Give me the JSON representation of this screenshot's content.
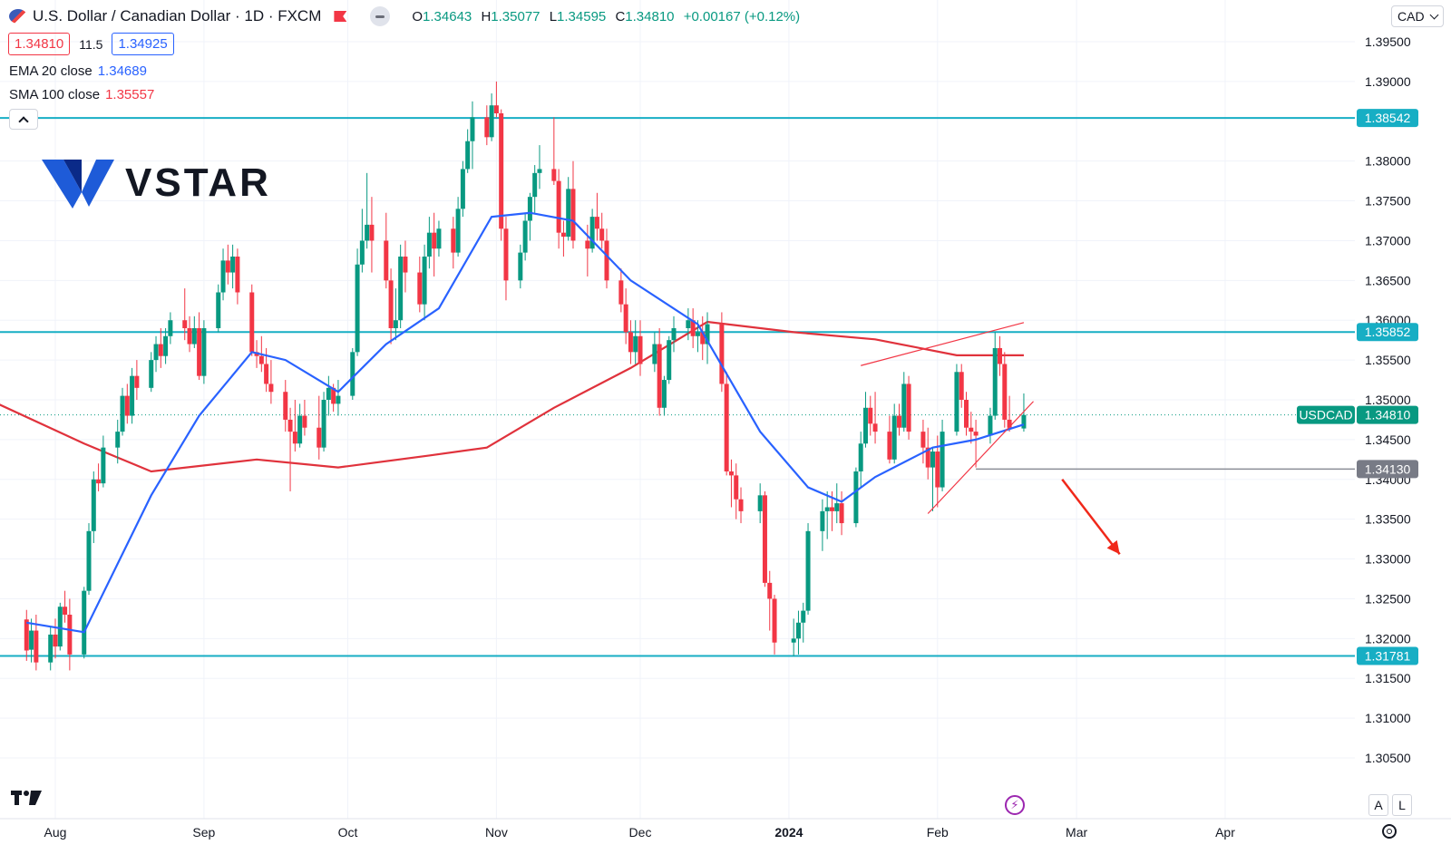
{
  "header": {
    "title": "U.S. Dollar / Canadian Dollar · 1D · FXCM",
    "o_label": "O",
    "o_value": "1.34643",
    "h_label": "H",
    "h_value": "1.35077",
    "l_label": "L",
    "l_value": "1.34595",
    "c_label": "C",
    "c_value": "1.34810",
    "change": "+0.00167 (+0.12%)"
  },
  "quote": {
    "bid": "1.34810",
    "spread": "11.5",
    "ask": "1.34925"
  },
  "indicators": {
    "ema_label": "EMA 20 close",
    "ema_value": "1.34689",
    "sma_label": "SMA 100 close",
    "sma_value": "1.35557"
  },
  "currency_select": {
    "value": "CAD"
  },
  "brand": {
    "name": "VSTAR"
  },
  "scale_buttons": {
    "auto": "A",
    "log": "L"
  },
  "colors": {
    "up": "#089981",
    "down": "#f23645",
    "ema": "#2962ff",
    "sma": "#e0323c",
    "hline": "#17aec4",
    "trend": "#f23645",
    "arrow": "#f0281a",
    "support_box": "#787b86"
  },
  "chart_data": {
    "type": "candlestick",
    "symbol_badge": "USDCAD",
    "last_price": 1.3481,
    "ylim": [
      1.301,
      1.399
    ],
    "y_ticks": [
      1.395,
      1.39,
      1.38,
      1.375,
      1.37,
      1.365,
      1.36,
      1.355,
      1.35,
      1.345,
      1.34,
      1.335,
      1.33,
      1.325,
      1.32,
      1.315,
      1.31,
      1.305
    ],
    "y_tick_labels": [
      "1.39500",
      "1.39000",
      "1.38000",
      "1.37500",
      "1.37000",
      "1.36500",
      "1.36000",
      "1.35500",
      "1.35000",
      "1.34500",
      "1.34000",
      "1.33500",
      "1.33000",
      "1.32500",
      "1.32000",
      "1.31500",
      "1.31000",
      "1.30500"
    ],
    "x_ticks": [
      {
        "label": "Aug",
        "date": "2023-08-01"
      },
      {
        "label": "Sep",
        "date": "2023-09-01"
      },
      {
        "label": "Oct",
        "date": "2023-10-01"
      },
      {
        "label": "Nov",
        "date": "2023-11-01"
      },
      {
        "label": "Dec",
        "date": "2023-12-01"
      },
      {
        "label": "2024",
        "date": "2024-01-01"
      },
      {
        "label": "Feb",
        "date": "2024-02-01"
      },
      {
        "label": "Mar",
        "date": "2024-03-01"
      },
      {
        "label": "Apr",
        "date": "2024-04-01"
      }
    ],
    "horizontal_levels": [
      {
        "value": 1.38542,
        "label": "1.38542"
      },
      {
        "value": 1.35852,
        "label": "1.35852"
      },
      {
        "value": 1.31781,
        "label": "1.31781"
      }
    ],
    "support_level": {
      "value": 1.3413,
      "label": "1.34130",
      "from": "2024-02-09"
    },
    "trendlines": [
      {
        "from": [
          "2024-01-16",
          1.3543
        ],
        "to": [
          "2024-02-19",
          1.3597
        ]
      },
      {
        "from": [
          "2024-01-30",
          1.3357
        ],
        "to": [
          "2024-02-21",
          1.3498
        ]
      }
    ],
    "arrow": {
      "from": [
        "2024-02-27",
        1.34
      ],
      "to": [
        "2024-03-10",
        1.3306
      ]
    },
    "candles": [
      [
        "2023-07-26",
        1.3224,
        1.3236,
        1.3172,
        1.3185
      ],
      [
        "2023-07-27",
        1.3186,
        1.3225,
        1.317,
        1.321
      ],
      [
        "2023-07-28",
        1.321,
        1.323,
        1.316,
        1.317
      ],
      [
        "2023-07-31",
        1.317,
        1.3215,
        1.316,
        1.3205
      ],
      [
        "2023-08-01",
        1.3205,
        1.3225,
        1.3175,
        1.319
      ],
      [
        "2023-08-02",
        1.319,
        1.3245,
        1.3185,
        1.324
      ],
      [
        "2023-08-03",
        1.324,
        1.326,
        1.322,
        1.323
      ],
      [
        "2023-08-04",
        1.323,
        1.325,
        1.316,
        1.318
      ],
      [
        "2023-08-07",
        1.318,
        1.3265,
        1.3175,
        1.326
      ],
      [
        "2023-08-08",
        1.326,
        1.3345,
        1.3255,
        1.3335
      ],
      [
        "2023-08-09",
        1.3335,
        1.341,
        1.332,
        1.34
      ],
      [
        "2023-08-10",
        1.34,
        1.342,
        1.3385,
        1.3395
      ],
      [
        "2023-08-11",
        1.3395,
        1.3455,
        1.339,
        1.344
      ],
      [
        "2023-08-14",
        1.344,
        1.3475,
        1.342,
        1.346
      ],
      [
        "2023-08-15",
        1.346,
        1.3515,
        1.3455,
        1.3505
      ],
      [
        "2023-08-16",
        1.3505,
        1.352,
        1.347,
        1.348
      ],
      [
        "2023-08-17",
        1.348,
        1.354,
        1.347,
        1.353
      ],
      [
        "2023-08-18",
        1.353,
        1.355,
        1.35,
        1.3515
      ],
      [
        "2023-08-21",
        1.3515,
        1.356,
        1.351,
        1.355
      ],
      [
        "2023-08-22",
        1.355,
        1.358,
        1.3535,
        1.357
      ],
      [
        "2023-08-23",
        1.357,
        1.359,
        1.354,
        1.3555
      ],
      [
        "2023-08-24",
        1.3555,
        1.359,
        1.3545,
        1.358
      ],
      [
        "2023-08-25",
        1.358,
        1.361,
        1.357,
        1.36
      ],
      [
        "2023-08-28",
        1.36,
        1.364,
        1.3575,
        1.359
      ],
      [
        "2023-08-29",
        1.359,
        1.3605,
        1.356,
        1.357
      ],
      [
        "2023-08-30",
        1.357,
        1.3605,
        1.3565,
        1.359
      ],
      [
        "2023-08-31",
        1.359,
        1.361,
        1.3525,
        1.353
      ],
      [
        "2023-09-01",
        1.353,
        1.36,
        1.352,
        1.359
      ],
      [
        "2023-09-04",
        1.359,
        1.3645,
        1.3585,
        1.3635
      ],
      [
        "2023-09-05",
        1.3635,
        1.369,
        1.3625,
        1.3675
      ],
      [
        "2023-09-06",
        1.3675,
        1.3695,
        1.3645,
        1.366
      ],
      [
        "2023-09-07",
        1.366,
        1.3695,
        1.364,
        1.368
      ],
      [
        "2023-09-08",
        1.368,
        1.369,
        1.362,
        1.3635
      ],
      [
        "2023-09-11",
        1.3635,
        1.3645,
        1.3555,
        1.356
      ],
      [
        "2023-09-12",
        1.356,
        1.3575,
        1.354,
        1.3555
      ],
      [
        "2023-09-13",
        1.3555,
        1.358,
        1.3535,
        1.3545
      ],
      [
        "2023-09-14",
        1.3545,
        1.3565,
        1.351,
        1.352
      ],
      [
        "2023-09-15",
        1.352,
        1.355,
        1.3495,
        1.351
      ],
      [
        "2023-09-18",
        1.351,
        1.3525,
        1.346,
        1.3475
      ],
      [
        "2023-09-19",
        1.3475,
        1.349,
        1.3385,
        1.346
      ],
      [
        "2023-09-20",
        1.346,
        1.35,
        1.3435,
        1.3445
      ],
      [
        "2023-09-21",
        1.3445,
        1.3495,
        1.344,
        1.348
      ],
      [
        "2023-09-22",
        1.348,
        1.35,
        1.3455,
        1.3465
      ],
      [
        "2023-09-25",
        1.3465,
        1.3505,
        1.3425,
        1.344
      ],
      [
        "2023-09-26",
        1.344,
        1.351,
        1.3435,
        1.35
      ],
      [
        "2023-09-27",
        1.35,
        1.353,
        1.348,
        1.3515
      ],
      [
        "2023-09-28",
        1.3515,
        1.352,
        1.3485,
        1.3495
      ],
      [
        "2023-09-29",
        1.3495,
        1.3525,
        1.348,
        1.3505
      ],
      [
        "2023-10-02",
        1.3505,
        1.3565,
        1.35,
        1.356
      ],
      [
        "2023-10-03",
        1.356,
        1.369,
        1.3555,
        1.367
      ],
      [
        "2023-10-04",
        1.367,
        1.374,
        1.366,
        1.37
      ],
      [
        "2023-10-05",
        1.37,
        1.3785,
        1.369,
        1.372
      ],
      [
        "2023-10-06",
        1.372,
        1.3755,
        1.366,
        1.37
      ],
      [
        "2023-10-09",
        1.37,
        1.3735,
        1.364,
        1.365
      ],
      [
        "2023-10-10",
        1.365,
        1.3665,
        1.357,
        1.359
      ],
      [
        "2023-10-11",
        1.359,
        1.364,
        1.3575,
        1.36
      ],
      [
        "2023-10-12",
        1.36,
        1.3695,
        1.359,
        1.368
      ],
      [
        "2023-10-13",
        1.368,
        1.37,
        1.3635,
        1.366
      ],
      [
        "2023-10-16",
        1.366,
        1.368,
        1.361,
        1.362
      ],
      [
        "2023-10-17",
        1.362,
        1.3695,
        1.36,
        1.368
      ],
      [
        "2023-10-18",
        1.368,
        1.373,
        1.3665,
        1.371
      ],
      [
        "2023-10-19",
        1.371,
        1.3735,
        1.3655,
        1.369
      ],
      [
        "2023-10-20",
        1.369,
        1.3725,
        1.368,
        1.3715
      ],
      [
        "2023-10-23",
        1.3715,
        1.373,
        1.3665,
        1.3685
      ],
      [
        "2023-10-24",
        1.3685,
        1.3755,
        1.368,
        1.374
      ],
      [
        "2023-10-25",
        1.374,
        1.38,
        1.373,
        1.379
      ],
      [
        "2023-10-26",
        1.379,
        1.384,
        1.3785,
        1.3825
      ],
      [
        "2023-10-27",
        1.3825,
        1.3875,
        1.379,
        1.3855
      ],
      [
        "2023-10-30",
        1.3855,
        1.387,
        1.382,
        1.383
      ],
      [
        "2023-10-31",
        1.383,
        1.3885,
        1.3825,
        1.387
      ],
      [
        "2023-11-01",
        1.387,
        1.39,
        1.3855,
        1.386
      ],
      [
        "2023-11-02",
        1.386,
        1.3865,
        1.37,
        1.3715
      ],
      [
        "2023-11-03",
        1.3715,
        1.373,
        1.3625,
        1.365
      ],
      [
        "2023-11-06",
        1.365,
        1.3695,
        1.364,
        1.3685
      ],
      [
        "2023-11-07",
        1.3685,
        1.3735,
        1.3675,
        1.3725
      ],
      [
        "2023-11-08",
        1.3725,
        1.376,
        1.37,
        1.3755
      ],
      [
        "2023-11-09",
        1.3755,
        1.3795,
        1.3735,
        1.3785
      ],
      [
        "2023-11-10",
        1.3785,
        1.382,
        1.3765,
        1.379
      ],
      [
        "2023-11-13",
        1.379,
        1.3855,
        1.377,
        1.3775
      ],
      [
        "2023-11-14",
        1.3775,
        1.379,
        1.369,
        1.371
      ],
      [
        "2023-11-15",
        1.371,
        1.3725,
        1.368,
        1.3705
      ],
      [
        "2023-11-16",
        1.3705,
        1.378,
        1.37,
        1.3765
      ],
      [
        "2023-11-17",
        1.3765,
        1.38,
        1.369,
        1.37
      ],
      [
        "2023-11-20",
        1.37,
        1.372,
        1.3655,
        1.369
      ],
      [
        "2023-11-21",
        1.369,
        1.374,
        1.3685,
        1.373
      ],
      [
        "2023-11-22",
        1.373,
        1.376,
        1.37,
        1.3715
      ],
      [
        "2023-11-23",
        1.3715,
        1.3735,
        1.369,
        1.37
      ],
      [
        "2023-11-24",
        1.37,
        1.3715,
        1.364,
        1.365
      ],
      [
        "2023-11-27",
        1.365,
        1.3665,
        1.361,
        1.362
      ],
      [
        "2023-11-28",
        1.362,
        1.364,
        1.357,
        1.3585
      ],
      [
        "2023-11-29",
        1.3585,
        1.36,
        1.3545,
        1.356
      ],
      [
        "2023-11-30",
        1.356,
        1.36,
        1.3545,
        1.358
      ],
      [
        "2023-12-01",
        1.358,
        1.36,
        1.353,
        1.3545
      ],
      [
        "2023-12-04",
        1.3545,
        1.3585,
        1.3535,
        1.357
      ],
      [
        "2023-12-05",
        1.357,
        1.359,
        1.348,
        1.349
      ],
      [
        "2023-12-06",
        1.349,
        1.353,
        1.348,
        1.3525
      ],
      [
        "2023-12-07",
        1.3525,
        1.358,
        1.352,
        1.3575
      ],
      [
        "2023-12-08",
        1.3575,
        1.3605,
        1.356,
        1.359
      ],
      [
        "2023-12-11",
        1.359,
        1.3615,
        1.3575,
        1.36
      ],
      [
        "2023-12-12",
        1.36,
        1.3615,
        1.3565,
        1.358
      ],
      [
        "2023-12-13",
        1.358,
        1.36,
        1.356,
        1.3585
      ],
      [
        "2023-12-14",
        1.3585,
        1.3605,
        1.355,
        1.357
      ],
      [
        "2023-12-15",
        1.357,
        1.361,
        1.3545,
        1.3595
      ],
      [
        "2023-12-18",
        1.3595,
        1.361,
        1.351,
        1.352
      ],
      [
        "2023-12-19",
        1.352,
        1.3535,
        1.3405,
        1.341
      ],
      [
        "2023-12-20",
        1.341,
        1.3425,
        1.3365,
        1.3405
      ],
      [
        "2023-12-21",
        1.3405,
        1.342,
        1.335,
        1.3375
      ],
      [
        "2023-12-22",
        1.3375,
        1.339,
        1.3345,
        1.336
      ],
      [
        "2023-12-26",
        1.336,
        1.3395,
        1.3345,
        1.338
      ],
      [
        "2023-12-27",
        1.338,
        1.3385,
        1.3265,
        1.327
      ],
      [
        "2023-12-28",
        1.327,
        1.3285,
        1.321,
        1.325
      ],
      [
        "2023-12-29",
        1.325,
        1.3255,
        1.318,
        1.3195
      ],
      [
        "2024-01-02",
        1.3195,
        1.3225,
        1.3178,
        1.32
      ],
      [
        "2024-01-03",
        1.32,
        1.3235,
        1.318,
        1.322
      ],
      [
        "2024-01-04",
        1.322,
        1.3245,
        1.3195,
        1.3235
      ],
      [
        "2024-01-05",
        1.3235,
        1.3345,
        1.323,
        1.3335
      ],
      [
        "2024-01-08",
        1.3335,
        1.3375,
        1.331,
        1.336
      ],
      [
        "2024-01-09",
        1.336,
        1.3385,
        1.3325,
        1.3365
      ],
      [
        "2024-01-10",
        1.3365,
        1.3385,
        1.3335,
        1.336
      ],
      [
        "2024-01-11",
        1.336,
        1.3395,
        1.3345,
        1.337
      ],
      [
        "2024-01-12",
        1.337,
        1.3385,
        1.333,
        1.3345
      ],
      [
        "2024-01-15",
        1.3345,
        1.3415,
        1.334,
        1.341
      ],
      [
        "2024-01-16",
        1.341,
        1.346,
        1.339,
        1.3445
      ],
      [
        "2024-01-17",
        1.3445,
        1.351,
        1.344,
        1.349
      ],
      [
        "2024-01-18",
        1.349,
        1.3505,
        1.3455,
        1.347
      ],
      [
        "2024-01-19",
        1.347,
        1.351,
        1.3445,
        1.346
      ],
      [
        "2024-01-22",
        1.346,
        1.348,
        1.342,
        1.3425
      ],
      [
        "2024-01-23",
        1.3425,
        1.3495,
        1.342,
        1.348
      ],
      [
        "2024-01-24",
        1.348,
        1.3495,
        1.3455,
        1.3465
      ],
      [
        "2024-01-25",
        1.3465,
        1.3535,
        1.346,
        1.352
      ],
      [
        "2024-01-26",
        1.352,
        1.353,
        1.345,
        1.346
      ],
      [
        "2024-01-29",
        1.346,
        1.3475,
        1.342,
        1.344
      ],
      [
        "2024-01-30",
        1.344,
        1.3465,
        1.34,
        1.3415
      ],
      [
        "2024-01-31",
        1.3415,
        1.344,
        1.336,
        1.3435
      ],
      [
        "2024-02-01",
        1.3435,
        1.3455,
        1.3365,
        1.339
      ],
      [
        "2024-02-02",
        1.339,
        1.3475,
        1.3385,
        1.346
      ],
      [
        "2024-02-05",
        1.346,
        1.3545,
        1.3455,
        1.3535
      ],
      [
        "2024-02-06",
        1.3535,
        1.3545,
        1.349,
        1.35
      ],
      [
        "2024-02-07",
        1.35,
        1.351,
        1.3455,
        1.3465
      ],
      [
        "2024-02-08",
        1.3465,
        1.3485,
        1.3445,
        1.346
      ],
      [
        "2024-02-09",
        1.346,
        1.3475,
        1.3415,
        1.3455
      ],
      [
        "2024-02-12",
        1.3455,
        1.349,
        1.3445,
        1.348
      ],
      [
        "2024-02-13",
        1.348,
        1.3585,
        1.3475,
        1.3565
      ],
      [
        "2024-02-14",
        1.3565,
        1.358,
        1.353,
        1.3545
      ],
      [
        "2024-02-15",
        1.3545,
        1.356,
        1.3465,
        1.3475
      ],
      [
        "2024-02-16",
        1.3475,
        1.3505,
        1.346,
        1.3465
      ],
      [
        "2024-02-19",
        1.3464,
        1.3508,
        1.346,
        1.3481
      ]
    ],
    "ema20": [
      [
        "2023-07-26",
        1.322
      ],
      [
        "2023-08-07",
        1.3208
      ],
      [
        "2023-08-21",
        1.338
      ],
      [
        "2023-08-31",
        1.348
      ],
      [
        "2023-09-11",
        1.356
      ],
      [
        "2023-09-18",
        1.355
      ],
      [
        "2023-09-29",
        1.351
      ],
      [
        "2023-10-09",
        1.357
      ],
      [
        "2023-10-20",
        1.3615
      ],
      [
        "2023-10-31",
        1.373
      ],
      [
        "2023-11-08",
        1.3735
      ],
      [
        "2023-11-17",
        1.3725
      ],
      [
        "2023-11-29",
        1.365
      ],
      [
        "2023-12-13",
        1.3595
      ],
      [
        "2023-12-26",
        1.346
      ],
      [
        "2024-01-05",
        1.339
      ],
      [
        "2024-01-12",
        1.3372
      ],
      [
        "2024-01-19",
        1.3403
      ],
      [
        "2024-01-31",
        1.344
      ],
      [
        "2024-02-09",
        1.345
      ],
      [
        "2024-02-19",
        1.3469
      ]
    ],
    "sma100": [
      [
        "2023-07-20",
        1.3495
      ],
      [
        "2023-08-07",
        1.3445
      ],
      [
        "2023-08-21",
        1.341
      ],
      [
        "2023-09-12",
        1.3425
      ],
      [
        "2023-09-29",
        1.3415
      ],
      [
        "2023-10-18",
        1.343
      ],
      [
        "2023-10-30",
        1.344
      ],
      [
        "2023-11-13",
        1.349
      ],
      [
        "2023-11-29",
        1.354
      ],
      [
        "2023-12-15",
        1.3598
      ],
      [
        "2024-01-02",
        1.3585
      ],
      [
        "2024-01-19",
        1.3576
      ],
      [
        "2024-02-05",
        1.3556
      ],
      [
        "2024-02-19",
        1.3556
      ]
    ]
  }
}
